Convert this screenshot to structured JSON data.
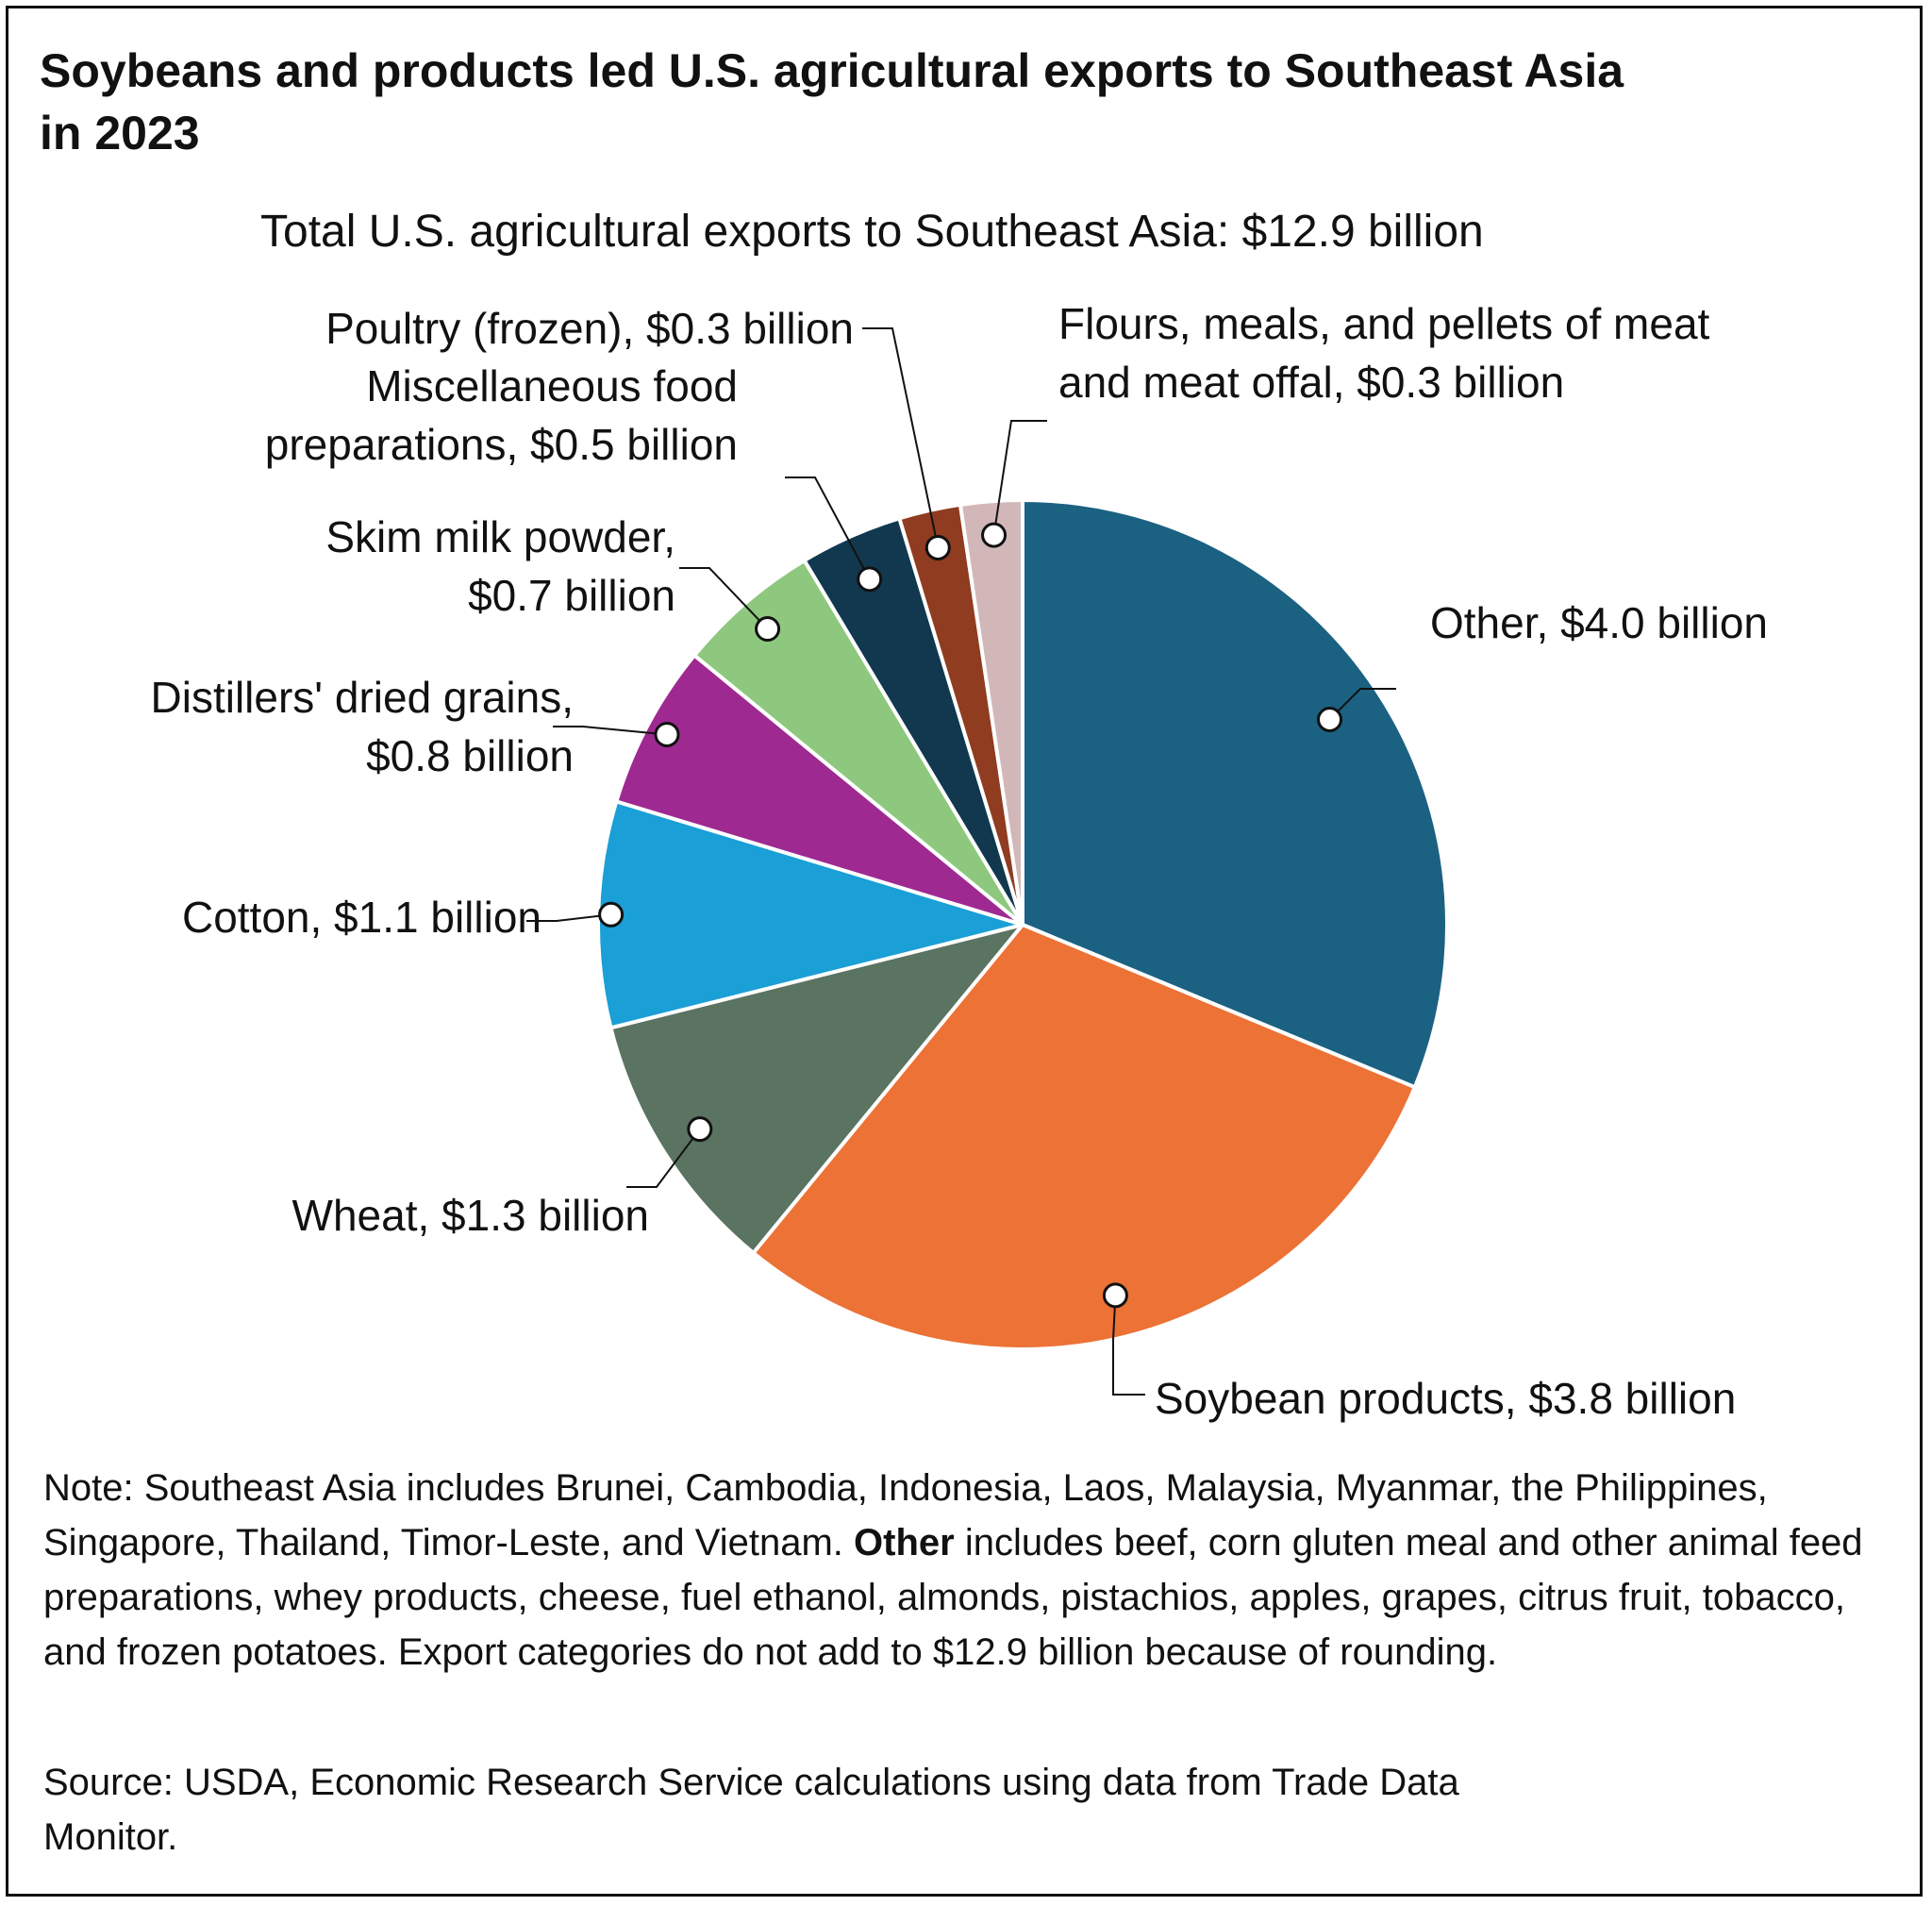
{
  "chart_data": {
    "type": "pie",
    "title": "Soybeans and products led U.S. agricultural exports to Southeast Asia in 2023",
    "subtitle": "Total U.S. agricultural exports to Southeast Asia: $12.9 billion",
    "unit": "billion USD",
    "slices": [
      {
        "name": "Other",
        "value": 4.0,
        "label_lines": [
          "Other, $4.0 billion"
        ],
        "color": "#1b6182"
      },
      {
        "name": "Soybean products",
        "value": 3.8,
        "label_lines": [
          "Soybean products, $3.8 billion"
        ],
        "color": "#ec7235"
      },
      {
        "name": "Wheat",
        "value": 1.3,
        "label_lines": [
          "Wheat, $1.3 billion"
        ],
        "color": "#5b7361"
      },
      {
        "name": "Cotton",
        "value": 1.1,
        "label_lines": [
          "Cotton, $1.1 billion"
        ],
        "color": "#1a9fd6"
      },
      {
        "name": "Distillers' dried grains",
        "value": 0.8,
        "label_lines": [
          "Distillers' dried grains,",
          "$0.8 billion"
        ],
        "color": "#9e2a91"
      },
      {
        "name": "Skim milk powder",
        "value": 0.7,
        "label_lines": [
          "Skim milk powder,",
          "$0.7 billion"
        ],
        "color": "#8ec87e"
      },
      {
        "name": "Miscellaneous food preparations",
        "value": 0.5,
        "label_lines": [
          "Miscellaneous food",
          "preparations, $0.5 billion"
        ],
        "color": "#11384e"
      },
      {
        "name": "Poultry (frozen)",
        "value": 0.3,
        "label_lines": [
          "Poultry (frozen), $0.3 billion"
        ],
        "color": "#8f3c20"
      },
      {
        "name": "Flours, meals, and pellets of meat and meat offal",
        "value": 0.3,
        "label_lines": [
          "Flours, meals, and pellets of meat",
          "and meat offal, $0.3 billion"
        ],
        "color": "#d2b7b9"
      }
    ]
  },
  "note": {
    "prefix": "Note: Southeast Asia includes Brunei, Cambodia, Indonesia, Laos, Malaysia, Myanmar, the Philippines, Singapore, Thailand, Timor-Leste, and Vietnam. ",
    "bold": "Other",
    "suffix": " includes beef, corn gluten meal and other animal feed preparations, whey products, cheese, fuel ethanol, almonds, pistachios, apples, grapes, citrus fruit, tobacco, and frozen potatoes. Export categories do not add to $12.9 billion because of rounding."
  },
  "source": "Source: USDA, Economic Research Service calculations using data from Trade Data Monitor."
}
